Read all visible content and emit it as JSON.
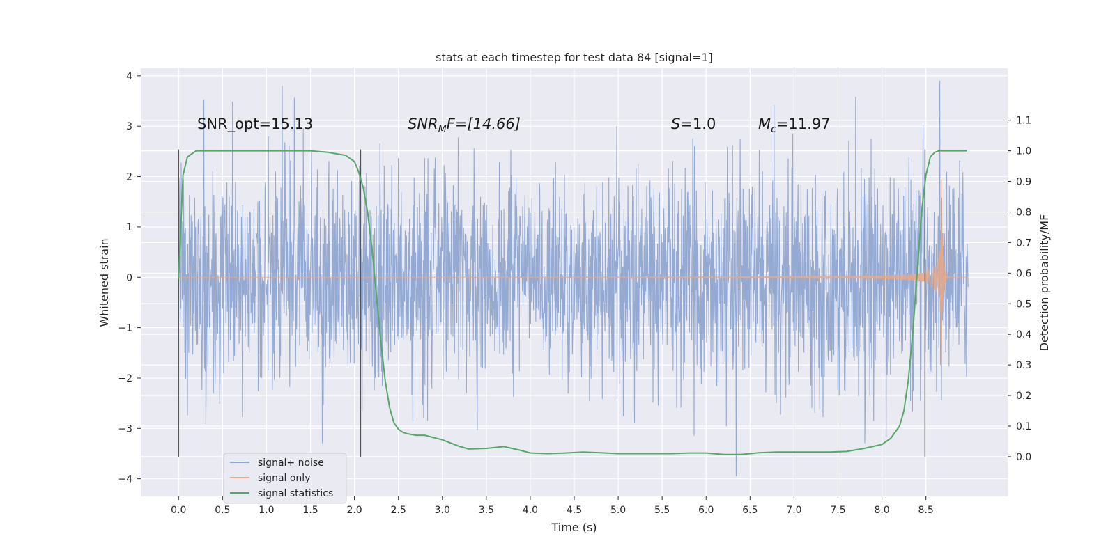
{
  "chart_data": {
    "type": "line",
    "title": "stats at each timestep for test data 84 [signal=1]",
    "xlabel": "Time (s)",
    "ylabel_left": "Whitened strain",
    "ylabel_right": "Detection probability/MF",
    "xlim": [
      -0.43,
      9.43
    ],
    "ylim_left": [
      -4.35,
      4.15
    ],
    "ylim_right": [
      -0.13,
      1.27
    ],
    "xticks": [
      0.0,
      0.5,
      1.0,
      1.5,
      2.0,
      2.5,
      3.0,
      3.5,
      4.0,
      4.5,
      5.0,
      5.5,
      6.0,
      6.5,
      7.0,
      7.5,
      8.0,
      8.5
    ],
    "xtick_labels": [
      "0.0",
      "0.5",
      "1.0",
      "1.5",
      "2.0",
      "2.5",
      "3.0",
      "3.5",
      "4.0",
      "4.5",
      "5.0",
      "5.5",
      "6.0",
      "6.5",
      "7.0",
      "7.5",
      "8.0",
      "8.5"
    ],
    "yticks_left": [
      4,
      3,
      2,
      1,
      0,
      -1,
      -2,
      -3,
      -4
    ],
    "ytick_labels_left": [
      "4",
      "3",
      "2",
      "1",
      "0",
      "−1",
      "−2",
      "−3",
      "−4"
    ],
    "yticks_right": [
      1.1,
      1.0,
      0.9,
      0.8,
      0.7,
      0.6,
      0.5,
      0.4,
      0.3,
      0.2,
      0.1,
      0.0
    ],
    "ytick_labels_right": [
      "1.1",
      "1.0",
      "0.9",
      "0.8",
      "0.7",
      "0.6",
      "0.5",
      "0.4",
      "0.3",
      "0.2",
      "0.1",
      "0.0"
    ],
    "grid": true,
    "legend_position": "lower-left",
    "vertical_markers": [
      0.0,
      2.07,
      8.49
    ],
    "annotations": {
      "snr_opt": "SNR_opt=15.13",
      "snr_mf_var": "SNR",
      "snr_mf_sub": "M",
      "snr_mf_rest": "F=[14.66]",
      "s_var": "S",
      "s_rest": "=1.0",
      "mc_var": "M",
      "mc_sub": "c",
      "mc_rest": "=11.97"
    },
    "series": [
      {
        "name": "signal+ noise",
        "color": "#8fa7d1",
        "description_values": "noisy whitened strain spanning roughly -4 to 3.8 over 0 to 9 s",
        "x_range": [
          0.0,
          8.98
        ],
        "envelope": 2.3
      },
      {
        "name": "signal only",
        "color": "#e4a989",
        "x_range": [
          0.0,
          8.98
        ],
        "chirp_merger_time": 8.67,
        "peak_amplitude": 2.8
      },
      {
        "name": "signal statistics",
        "color": "#55a868",
        "axis": "right",
        "x": [
          0.0,
          0.05,
          0.1,
          0.15,
          0.2,
          0.3,
          0.5,
          1.0,
          1.5,
          1.7,
          1.8,
          1.9,
          2.0,
          2.05,
          2.1,
          2.15,
          2.2,
          2.25,
          2.3,
          2.35,
          2.4,
          2.45,
          2.5,
          2.55,
          2.6,
          2.7,
          2.8,
          3.0,
          3.2,
          3.3,
          3.5,
          3.7,
          3.9,
          4.0,
          4.2,
          4.4,
          4.6,
          4.8,
          5.0,
          5.2,
          5.4,
          5.6,
          5.8,
          6.0,
          6.2,
          6.4,
          6.6,
          6.8,
          7.0,
          7.2,
          7.4,
          7.6,
          7.8,
          8.0,
          8.1,
          8.2,
          8.25,
          8.3,
          8.35,
          8.4,
          8.45,
          8.5,
          8.55,
          8.6,
          8.65,
          8.7,
          8.8,
          8.97
        ],
        "y": [
          0.58,
          0.92,
          0.98,
          0.99,
          1.0,
          1.0,
          1.0,
          1.0,
          1.0,
          0.995,
          0.99,
          0.985,
          0.965,
          0.93,
          0.88,
          0.8,
          0.68,
          0.53,
          0.38,
          0.25,
          0.16,
          0.11,
          0.09,
          0.08,
          0.075,
          0.07,
          0.07,
          0.055,
          0.033,
          0.025,
          0.027,
          0.033,
          0.02,
          0.012,
          0.01,
          0.012,
          0.015,
          0.013,
          0.01,
          0.01,
          0.01,
          0.01,
          0.012,
          0.012,
          0.007,
          0.007,
          0.013,
          0.015,
          0.015,
          0.015,
          0.015,
          0.017,
          0.027,
          0.04,
          0.06,
          0.1,
          0.15,
          0.25,
          0.4,
          0.6,
          0.8,
          0.92,
          0.98,
          0.995,
          1.0,
          1.0,
          1.0,
          1.0
        ]
      }
    ]
  }
}
